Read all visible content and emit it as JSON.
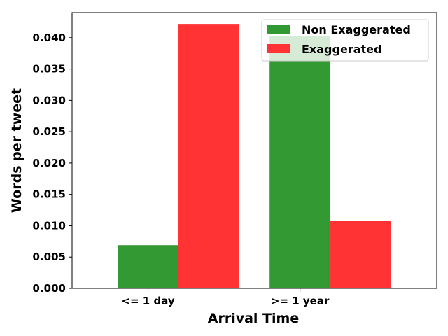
{
  "chart_data": {
    "type": "bar",
    "title": "",
    "xlabel": "Arrival Time",
    "ylabel": "Words per tweet",
    "categories": [
      "<= 1 day",
      ">= 1 year"
    ],
    "series": [
      {
        "name": "Non Exaggerated",
        "color": "#339933",
        "values": [
          0.0069,
          0.0402
        ]
      },
      {
        "name": "Exaggerated",
        "color": "#ff3333",
        "values": [
          0.0422,
          0.0108
        ]
      }
    ],
    "ylim": [
      0,
      0.044
    ],
    "yticks": [
      "0.000",
      "0.005",
      "0.010",
      "0.015",
      "0.020",
      "0.025",
      "0.030",
      "0.035",
      "0.040"
    ],
    "grid": false,
    "legend_position": "top-right"
  }
}
